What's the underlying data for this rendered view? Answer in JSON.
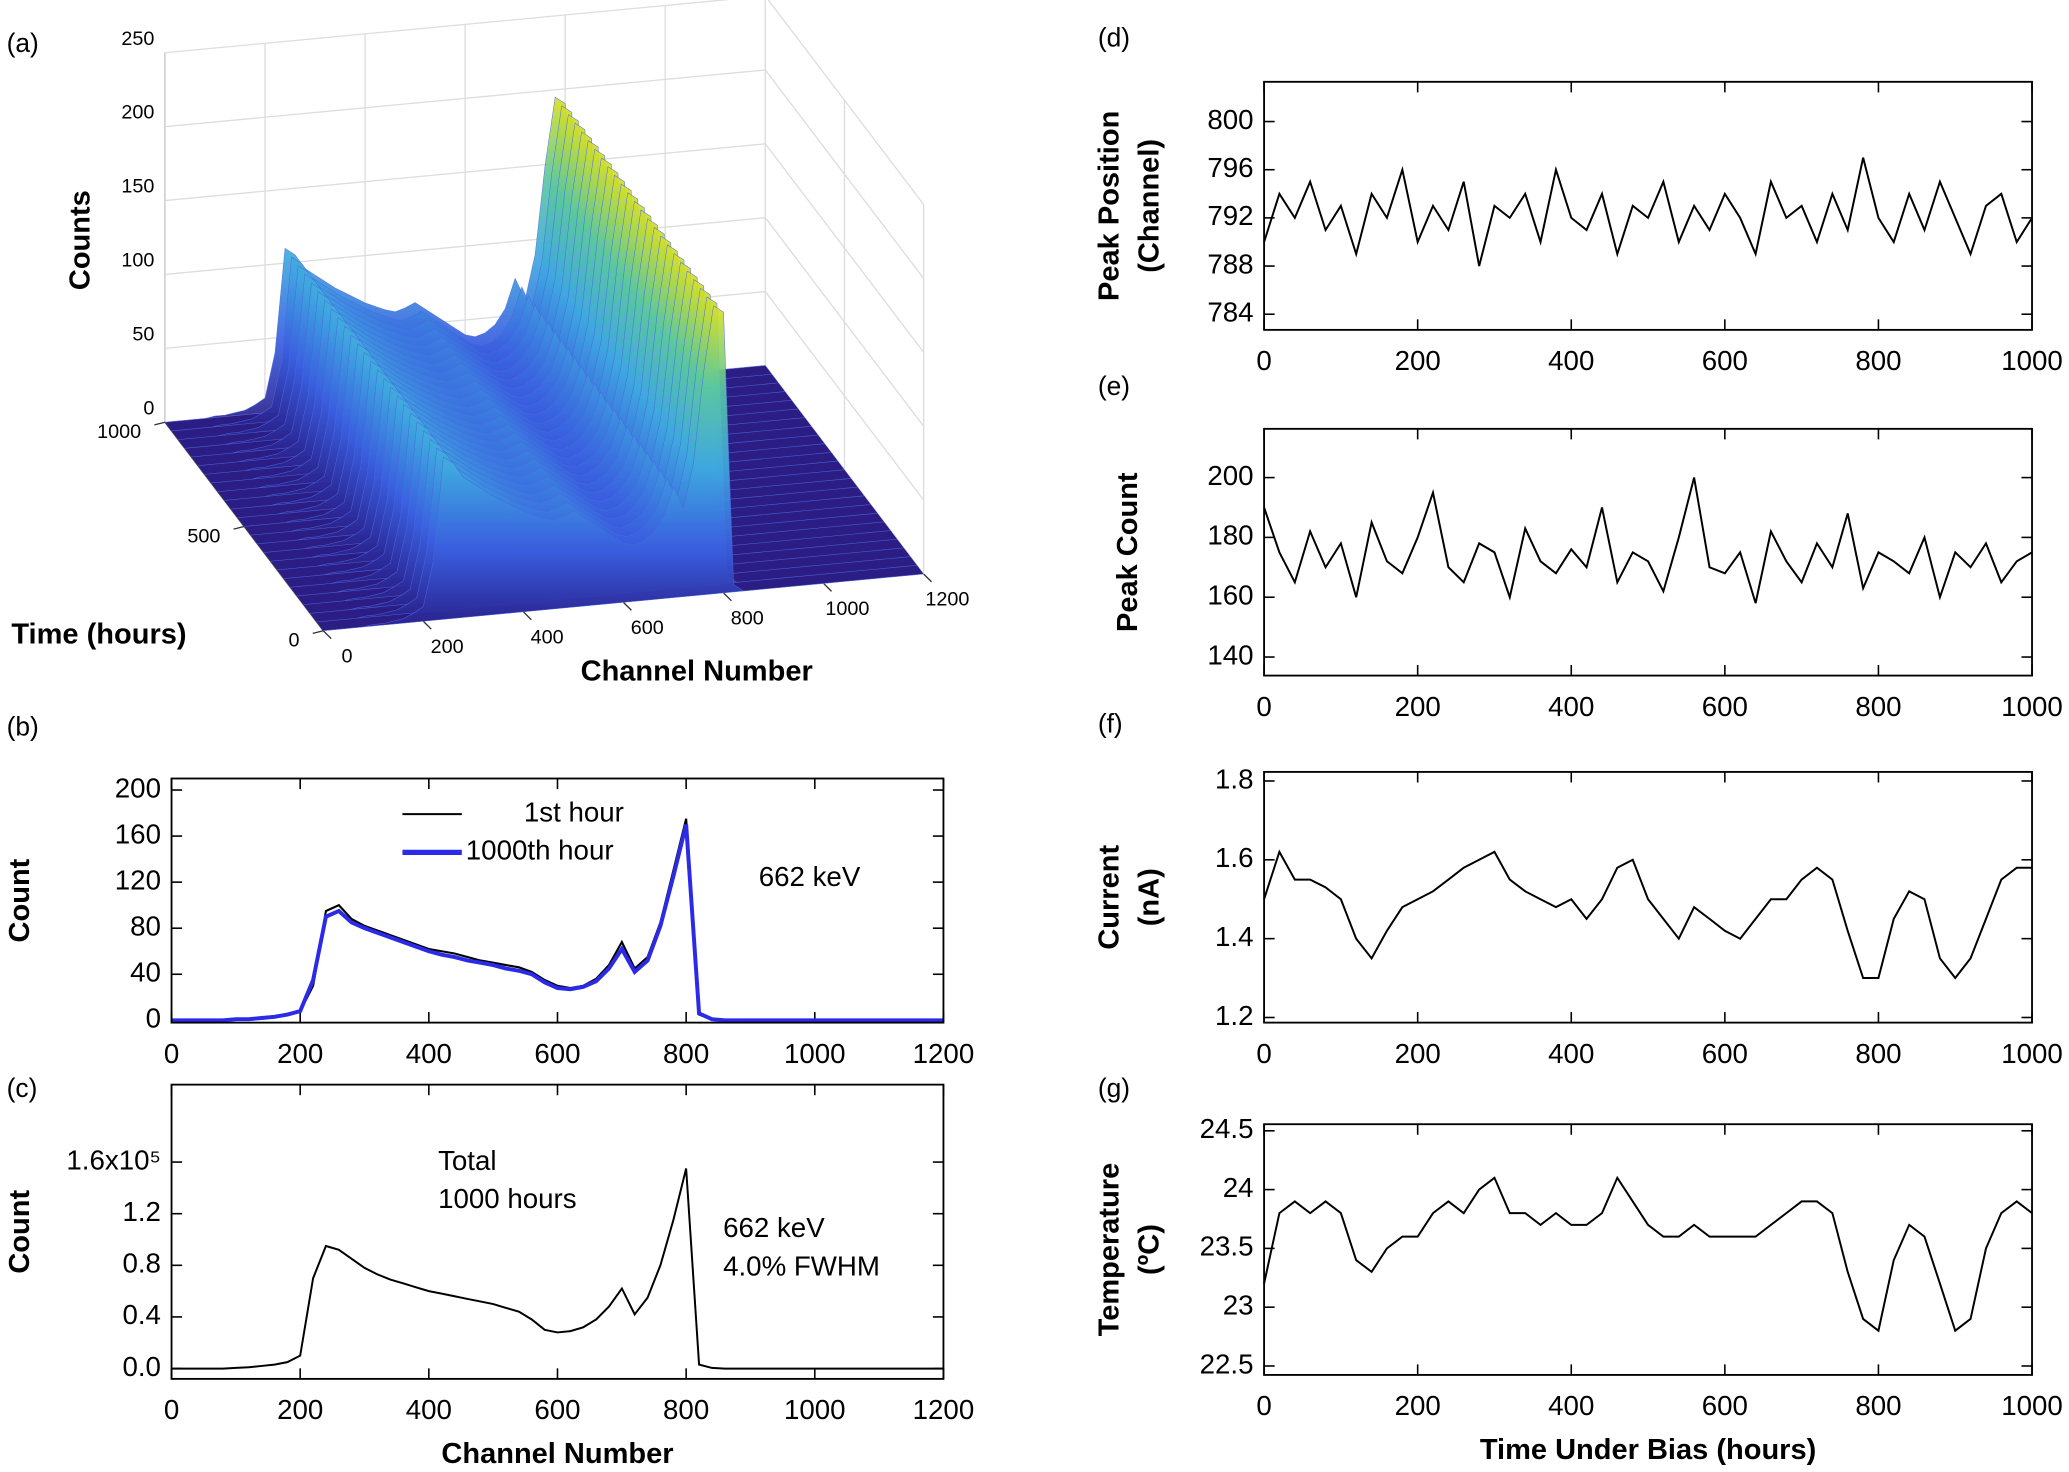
{
  "chart_data": [
    {
      "type": "surface3d",
      "panel": "(a)",
      "xlabel": "Channel Number",
      "ylabel": "Time (hours)",
      "zlabel": "Counts",
      "x": [
        0,
        20,
        40,
        60,
        80,
        100,
        120,
        140,
        160,
        180,
        200,
        220,
        240,
        260,
        280,
        300,
        320,
        340,
        360,
        380,
        400,
        420,
        440,
        460,
        480,
        500,
        520,
        540,
        560,
        580,
        600,
        620,
        640,
        660,
        680,
        700,
        720,
        740,
        760,
        780,
        800,
        820,
        840,
        860,
        880,
        900,
        920,
        940,
        960,
        980,
        1000,
        1020,
        1040,
        1060,
        1080,
        1100,
        1120,
        1140,
        1160,
        1180,
        1200
      ],
      "values": [
        0,
        0,
        0,
        0,
        0,
        1,
        1,
        2,
        3,
        6,
        10,
        40,
        110,
        105,
        95,
        90,
        85,
        80,
        76,
        72,
        68,
        65,
        62,
        60,
        62,
        65,
        60,
        55,
        50,
        45,
        40,
        38,
        40,
        45,
        55,
        75,
        60,
        90,
        150,
        195,
        190,
        5,
        0,
        0,
        0,
        0,
        0,
        0,
        0,
        0,
        0,
        0,
        0,
        0,
        0,
        0,
        0,
        0,
        0,
        0,
        0
      ],
      "xlim": [
        0,
        1200
      ],
      "xticks": [
        0,
        200,
        400,
        600,
        800,
        1000,
        1200
      ],
      "ylim": [
        0,
        1000
      ],
      "yticks": [
        0,
        500,
        1000
      ],
      "zlim": [
        0,
        250
      ],
      "zticks": [
        0,
        50,
        100,
        150,
        200,
        250
      ]
    },
    {
      "type": "line",
      "panel": "(b)",
      "ylabel": "Count",
      "annotations": [
        "662 keV"
      ],
      "legend": true,
      "x": [
        0,
        20,
        40,
        60,
        80,
        100,
        120,
        140,
        160,
        180,
        200,
        220,
        240,
        260,
        280,
        300,
        320,
        340,
        360,
        380,
        400,
        420,
        440,
        460,
        480,
        500,
        520,
        540,
        560,
        580,
        600,
        620,
        640,
        660,
        680,
        700,
        720,
        740,
        760,
        780,
        800,
        820,
        840,
        860,
        880,
        900,
        920,
        940,
        960,
        980,
        1000,
        1020,
        1040,
        1060,
        1080,
        1100,
        1120,
        1140,
        1160,
        1180,
        1200
      ],
      "series": [
        {
          "name": "1st hour",
          "color": "#000000",
          "values": [
            0,
            0,
            0,
            0,
            0,
            1,
            1,
            2,
            3,
            5,
            8,
            30,
            95,
            100,
            88,
            82,
            78,
            74,
            70,
            66,
            62,
            60,
            58,
            55,
            52,
            50,
            48,
            46,
            42,
            35,
            30,
            28,
            30,
            36,
            48,
            68,
            45,
            55,
            85,
            130,
            175,
            5,
            1,
            0,
            0,
            0,
            0,
            0,
            0,
            0,
            0,
            0,
            0,
            0,
            0,
            0,
            0,
            0,
            0,
            0,
            0
          ]
        },
        {
          "name": "1000th hour",
          "color": "#2a2ae8",
          "values": [
            0,
            0,
            0,
            0,
            0,
            1,
            1,
            2,
            3,
            5,
            8,
            35,
            90,
            95,
            85,
            80,
            76,
            72,
            68,
            64,
            60,
            57,
            55,
            52,
            50,
            48,
            45,
            43,
            40,
            33,
            28,
            27,
            29,
            34,
            45,
            62,
            42,
            52,
            82,
            125,
            170,
            6,
            1,
            0,
            0,
            0,
            0,
            0,
            0,
            0,
            0,
            0,
            0,
            0,
            0,
            0,
            0,
            0,
            0,
            0,
            0
          ]
        }
      ],
      "xlim": [
        0,
        1200
      ],
      "xticks": [
        0,
        200,
        400,
        600,
        800,
        1000,
        1200
      ],
      "ylim": [
        -2,
        210
      ],
      "yticks": [
        0,
        40,
        80,
        120,
        160,
        200
      ]
    },
    {
      "type": "line",
      "panel": "(c)",
      "ylabel": "Count",
      "xlabel": "Channel Number",
      "annotations": [
        "Total",
        "1000 hours",
        "662 keV",
        "4.0% FWHM"
      ],
      "x": [
        0,
        20,
        40,
        60,
        80,
        100,
        120,
        140,
        160,
        180,
        200,
        220,
        240,
        260,
        280,
        300,
        320,
        340,
        360,
        380,
        400,
        420,
        440,
        460,
        480,
        500,
        520,
        540,
        560,
        580,
        600,
        620,
        640,
        660,
        680,
        700,
        720,
        740,
        760,
        780,
        800,
        820,
        840,
        860,
        880,
        900,
        920,
        940,
        960,
        980,
        1000,
        1020,
        1040,
        1060,
        1080,
        1100,
        1120,
        1140,
        1160,
        1180,
        1200
      ],
      "values": [
        0,
        0,
        0,
        0,
        0,
        500,
        1000,
        2000,
        3000,
        5000,
        10000,
        70000,
        95000,
        92000,
        85000,
        78000,
        73000,
        69000,
        66000,
        63000,
        60000,
        58000,
        56000,
        54000,
        52000,
        50000,
        47000,
        44000,
        38000,
        30000,
        28000,
        29000,
        32000,
        38000,
        48000,
        62000,
        42000,
        55000,
        80000,
        115000,
        155000,
        3000,
        500,
        0,
        0,
        0,
        0,
        0,
        0,
        0,
        0,
        0,
        0,
        0,
        0,
        0,
        0,
        0,
        0,
        0,
        0
      ],
      "color": "#000000",
      "xlim": [
        0,
        1200
      ],
      "xticks": [
        0,
        200,
        400,
        600,
        800,
        1000,
        1200
      ],
      "ylim": [
        -8000,
        220000
      ],
      "yticks": [
        {
          "value": 0,
          "label": "0.0"
        },
        {
          "value": 40000,
          "label": "0.4"
        },
        {
          "value": 80000,
          "label": "0.8"
        },
        {
          "value": 120000,
          "label": "1.2"
        },
        {
          "value": 160000,
          "label": "1.6x10⁵"
        }
      ]
    },
    {
      "type": "line",
      "panel": "(d)",
      "ylabel": [
        "Peak Position",
        "(Channel)"
      ],
      "x": [
        0,
        20,
        40,
        60,
        80,
        100,
        120,
        140,
        160,
        180,
        200,
        220,
        240,
        260,
        280,
        300,
        320,
        340,
        360,
        380,
        400,
        420,
        440,
        460,
        480,
        500,
        520,
        540,
        560,
        580,
        600,
        620,
        640,
        660,
        680,
        700,
        720,
        740,
        760,
        780,
        800,
        820,
        840,
        860,
        880,
        900,
        920,
        940,
        960,
        980,
        1000
      ],
      "values": [
        790,
        794,
        792,
        795,
        791,
        793,
        789,
        794,
        792,
        796,
        790,
        793,
        791,
        795,
        788,
        793,
        792,
        794,
        790,
        796,
        792,
        791,
        794,
        789,
        793,
        792,
        795,
        790,
        793,
        791,
        794,
        792,
        789,
        795,
        792,
        793,
        790,
        794,
        791,
        797,
        792,
        790,
        794,
        791,
        795,
        792,
        789,
        793,
        794,
        790,
        792
      ],
      "color": "#000000",
      "xlim": [
        0,
        1000
      ],
      "xticks": [
        0,
        200,
        400,
        600,
        800,
        1000
      ],
      "ylim": [
        782.7,
        803.3
      ],
      "yticks": [
        784,
        788,
        792,
        796,
        800
      ]
    },
    {
      "type": "line",
      "panel": "(e)",
      "ylabel": [
        "Peak Count"
      ],
      "x": [
        0,
        20,
        40,
        60,
        80,
        100,
        120,
        140,
        160,
        180,
        200,
        220,
        240,
        260,
        280,
        300,
        320,
        340,
        360,
        380,
        400,
        420,
        440,
        460,
        480,
        500,
        520,
        540,
        560,
        580,
        600,
        620,
        640,
        660,
        680,
        700,
        720,
        740,
        760,
        780,
        800,
        820,
        840,
        860,
        880,
        900,
        920,
        940,
        960,
        980,
        1000
      ],
      "values": [
        190,
        175,
        165,
        182,
        170,
        178,
        160,
        185,
        172,
        168,
        180,
        195,
        170,
        165,
        178,
        175,
        160,
        183,
        172,
        168,
        176,
        170,
        190,
        165,
        175,
        172,
        162,
        180,
        200,
        170,
        168,
        175,
        158,
        182,
        172,
        165,
        178,
        170,
        188,
        163,
        175,
        172,
        168,
        180,
        160,
        175,
        170,
        178,
        165,
        172,
        175
      ],
      "color": "#000000",
      "xlim": [
        0,
        1000
      ],
      "xticks": [
        0,
        200,
        400,
        600,
        800,
        1000
      ],
      "ylim": [
        133.8,
        216.3
      ],
      "yticks": [
        140,
        160,
        180,
        200
      ]
    },
    {
      "type": "line",
      "panel": "(f)",
      "ylabel": [
        "Current",
        "(nA)"
      ],
      "x": [
        0,
        20,
        40,
        60,
        80,
        100,
        120,
        140,
        160,
        180,
        200,
        220,
        240,
        260,
        280,
        300,
        320,
        340,
        360,
        380,
        400,
        420,
        440,
        460,
        480,
        500,
        520,
        540,
        560,
        580,
        600,
        620,
        640,
        660,
        680,
        700,
        720,
        740,
        760,
        780,
        800,
        820,
        840,
        860,
        880,
        900,
        920,
        940,
        960,
        980,
        1000
      ],
      "values": [
        1.5,
        1.62,
        1.55,
        1.55,
        1.53,
        1.5,
        1.4,
        1.35,
        1.42,
        1.48,
        1.5,
        1.52,
        1.55,
        1.58,
        1.6,
        1.62,
        1.55,
        1.52,
        1.5,
        1.48,
        1.5,
        1.45,
        1.5,
        1.58,
        1.6,
        1.5,
        1.45,
        1.4,
        1.48,
        1.45,
        1.42,
        1.4,
        1.45,
        1.5,
        1.5,
        1.55,
        1.58,
        1.55,
        1.42,
        1.3,
        1.3,
        1.45,
        1.52,
        1.5,
        1.35,
        1.3,
        1.35,
        1.45,
        1.55,
        1.58,
        1.58
      ],
      "color": "#000000",
      "xlim": [
        0,
        1000
      ],
      "xticks": [
        0,
        200,
        400,
        600,
        800,
        1000
      ],
      "ylim": [
        1.187,
        1.823
      ],
      "yticks": [
        1.2,
        1.4,
        1.6,
        1.8
      ]
    },
    {
      "type": "line",
      "panel": "(g)",
      "ylabel": [
        "Temperature",
        "(ºC)"
      ],
      "xlabel": "Time Under Bias (hours)",
      "x": [
        0,
        20,
        40,
        60,
        80,
        100,
        120,
        140,
        160,
        180,
        200,
        220,
        240,
        260,
        280,
        300,
        320,
        340,
        360,
        380,
        400,
        420,
        440,
        460,
        480,
        500,
        520,
        540,
        560,
        580,
        600,
        620,
        640,
        660,
        680,
        700,
        720,
        740,
        760,
        780,
        800,
        820,
        840,
        860,
        880,
        900,
        920,
        940,
        960,
        980,
        1000
      ],
      "values": [
        23.2,
        23.8,
        23.9,
        23.8,
        23.9,
        23.8,
        23.4,
        23.3,
        23.5,
        23.6,
        23.6,
        23.8,
        23.9,
        23.8,
        24,
        24.1,
        23.8,
        23.8,
        23.7,
        23.8,
        23.7,
        23.7,
        23.8,
        24.1,
        23.9,
        23.7,
        23.6,
        23.6,
        23.7,
        23.6,
        23.6,
        23.6,
        23.6,
        23.7,
        23.8,
        23.9,
        23.9,
        23.8,
        23.3,
        22.9,
        22.8,
        23.4,
        23.7,
        23.6,
        23.2,
        22.8,
        22.9,
        23.5,
        23.8,
        23.9,
        23.8
      ],
      "color": "#000000",
      "xlim": [
        0,
        1000
      ],
      "xticks": [
        0,
        200,
        400,
        600,
        800,
        1000
      ],
      "ylim": [
        22.424,
        24.556
      ],
      "yticks": [
        22.5,
        23,
        23.5,
        24,
        24.5
      ]
    }
  ]
}
